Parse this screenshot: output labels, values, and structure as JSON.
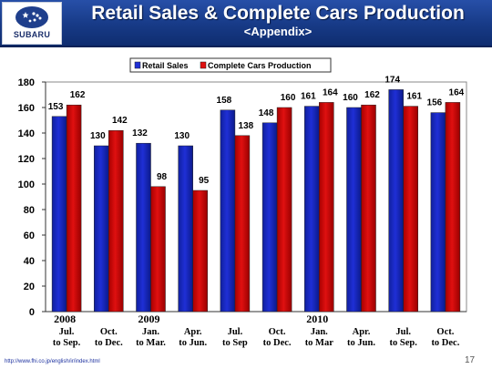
{
  "header": {
    "logo_text": "SUBARU",
    "title": "Retail Sales & Complete Cars Production",
    "subtitle": "<Appendix>"
  },
  "footer": {
    "url": "http://www.fhi.co.jp/english/ir/index.html",
    "page_number": "17"
  },
  "colors": {
    "header_bg": "#1a3d8a",
    "retail_sales": "#1f2fd6",
    "complete_cars": "#e01010"
  },
  "chart_data": {
    "type": "bar",
    "title": "",
    "xlabel": "",
    "ylabel": "",
    "ylim": [
      0,
      180
    ],
    "yticks": [
      0,
      20,
      40,
      60,
      80,
      100,
      120,
      140,
      160,
      180
    ],
    "grid": false,
    "legend_position": "top-center",
    "categories": [
      {
        "year": "2008",
        "line1": "Jul.",
        "line2": "to Sep."
      },
      {
        "year": "",
        "line1": "Oct.",
        "line2": "to Dec."
      },
      {
        "year": "2009",
        "line1": "Jan.",
        "line2": "to Mar."
      },
      {
        "year": "",
        "line1": "Apr.",
        "line2": "to Jun."
      },
      {
        "year": "",
        "line1": "Jul.",
        "line2": "to Sep"
      },
      {
        "year": "",
        "line1": "Oct.",
        "line2": "to Dec."
      },
      {
        "year": "2010",
        "line1": "Jan.",
        "line2": "to Mar"
      },
      {
        "year": "",
        "line1": "Apr.",
        "line2": "to Jun."
      },
      {
        "year": "",
        "line1": "Jul.",
        "line2": "to Sep."
      },
      {
        "year": "",
        "line1": "Oct.",
        "line2": "to Dec."
      }
    ],
    "series": [
      {
        "name": "Retail Sales",
        "color": "#1f2fd6",
        "values": [
          153,
          130,
          132,
          130,
          158,
          148,
          161,
          160,
          174,
          156
        ]
      },
      {
        "name": "Complete Cars Production",
        "color": "#e01010",
        "values": [
          162,
          142,
          98,
          95,
          138,
          160,
          164,
          162,
          161,
          164
        ]
      }
    ]
  }
}
